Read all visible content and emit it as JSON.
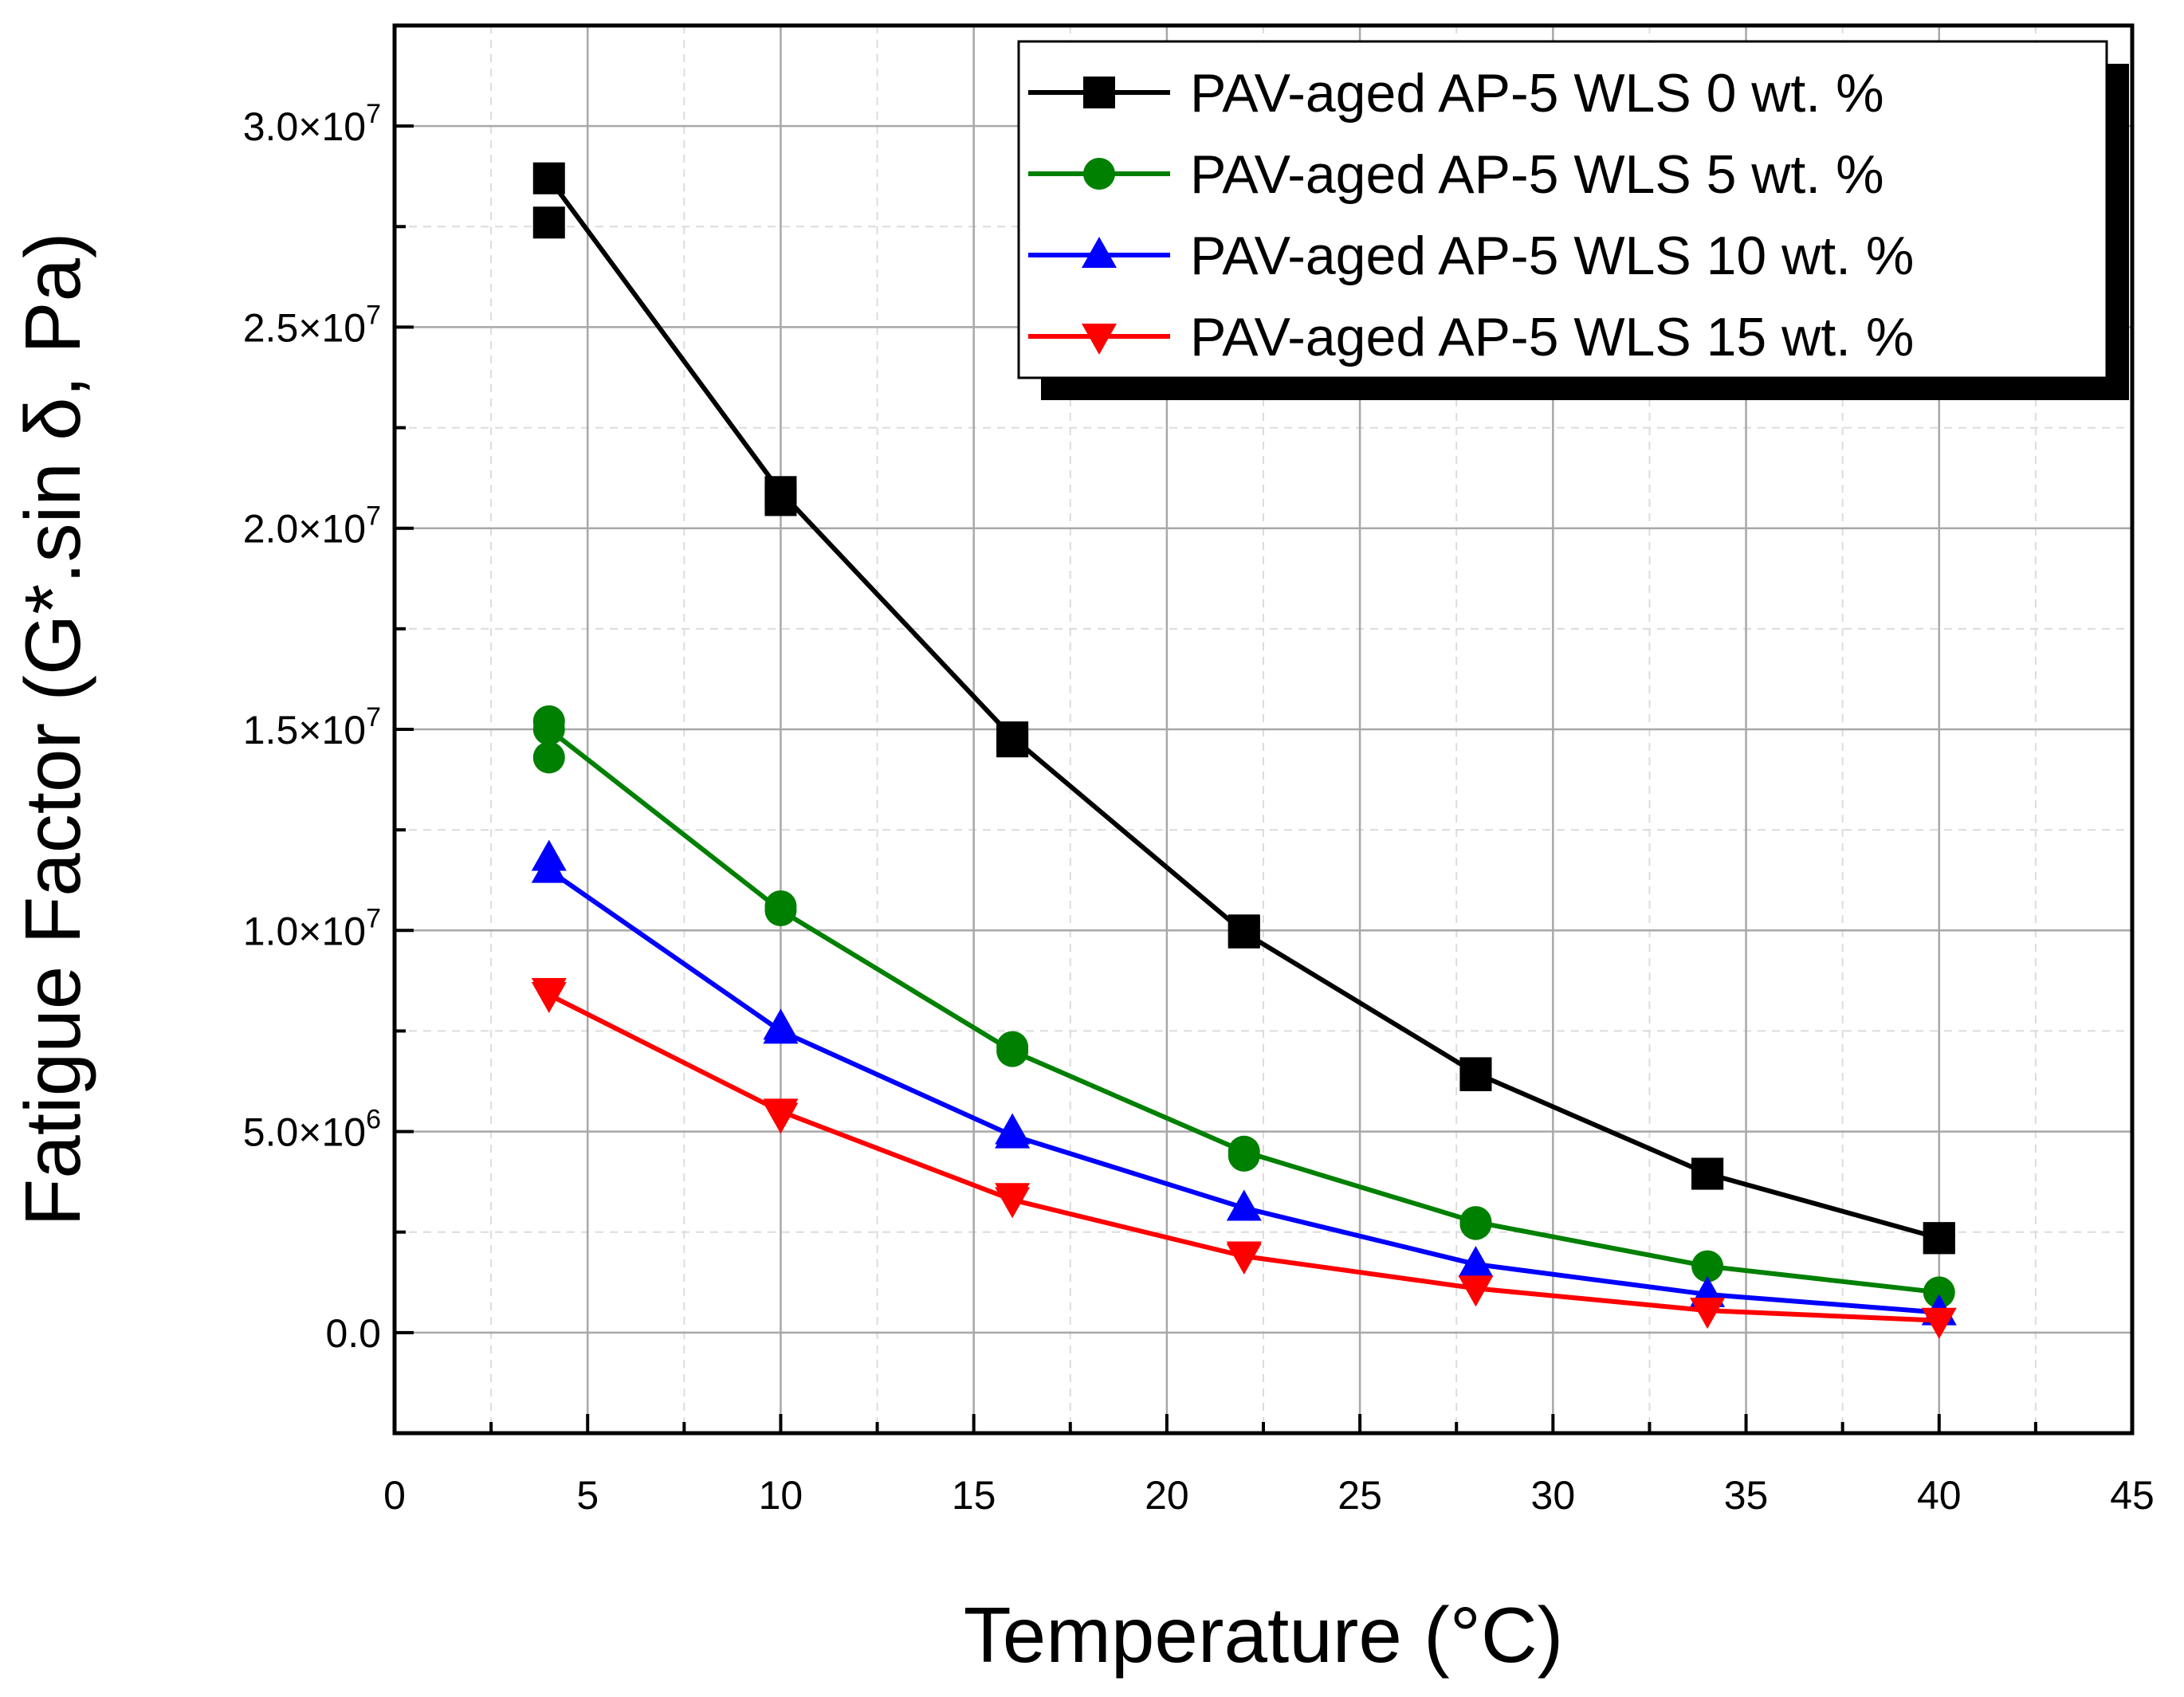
{
  "chart_data": {
    "type": "line",
    "title": "",
    "xlabel": "Temperature (°C)",
    "ylabel": "Fatigue Factor (G*.sin δ, Pa)",
    "xlim": [
      0,
      45
    ],
    "ylim": [
      -2500000,
      32500000
    ],
    "x_ticks": [
      0,
      5,
      10,
      15,
      20,
      25,
      30,
      35,
      40,
      45
    ],
    "x_tick_labels": [
      "0",
      "5",
      "10",
      "15",
      "20",
      "25",
      "30",
      "35",
      "40",
      "45"
    ],
    "y_ticks": [
      0,
      5000000,
      10000000,
      15000000,
      20000000,
      25000000,
      30000000
    ],
    "y_tick_labels": [
      {
        "mantissa": "0.0",
        "exp": ""
      },
      {
        "mantissa": "5.0×10",
        "exp": "6"
      },
      {
        "mantissa": "1.0×10",
        "exp": "7"
      },
      {
        "mantissa": "1.5×10",
        "exp": "7"
      },
      {
        "mantissa": "2.0×10",
        "exp": "7"
      },
      {
        "mantissa": "2.5×10",
        "exp": "7"
      },
      {
        "mantissa": "3.0×10",
        "exp": "7"
      }
    ],
    "grid": true,
    "legend_position": "top-right",
    "x": [
      4,
      10,
      16,
      22,
      28,
      34,
      40
    ],
    "series": [
      {
        "name": "PAV-aged AP-5 WLS 0 wt. %",
        "color": "#000000",
        "marker": "square",
        "values": [
          28700000,
          20900000,
          14800000,
          9950000,
          6450000,
          3950000,
          2350000
        ],
        "extra_points": [
          [
            4,
            27600000
          ],
          [
            10,
            20700000
          ],
          [
            16,
            14700000
          ],
          [
            22,
            10000000
          ],
          [
            28,
            6400000
          ],
          [
            34,
            3950000
          ],
          [
            40,
            2350000
          ]
        ]
      },
      {
        "name": "PAV-aged AP-5 WLS 5 wt. %",
        "color": "#008000",
        "marker": "circle",
        "values": [
          15000000,
          10500000,
          7000000,
          4500000,
          2750000,
          1650000,
          1000000
        ],
        "extra_points": [
          [
            4,
            15200000
          ],
          [
            4,
            14300000
          ],
          [
            10,
            10600000
          ],
          [
            16,
            7100000
          ],
          [
            22,
            4400000
          ],
          [
            28,
            2700000
          ]
        ]
      },
      {
        "name": "PAV-aged AP-5 WLS 10 wt. %",
        "color": "#0000ff",
        "marker": "triangle-up",
        "values": [
          11500000,
          7500000,
          4900000,
          3100000,
          1700000,
          950000,
          500000
        ],
        "extra_points": [
          [
            4,
            11800000
          ],
          [
            10,
            7600000
          ],
          [
            16,
            5000000
          ]
        ]
      },
      {
        "name": "PAV-aged AP-5 WLS 15 wt. %",
        "color": "#ff0000",
        "marker": "triangle-down",
        "values": [
          8400000,
          5500000,
          3300000,
          1900000,
          1100000,
          550000,
          300000
        ],
        "extra_points": [
          [
            4,
            8500000
          ],
          [
            10,
            5400000
          ],
          [
            16,
            3400000
          ],
          [
            22,
            1950000
          ]
        ]
      }
    ]
  }
}
